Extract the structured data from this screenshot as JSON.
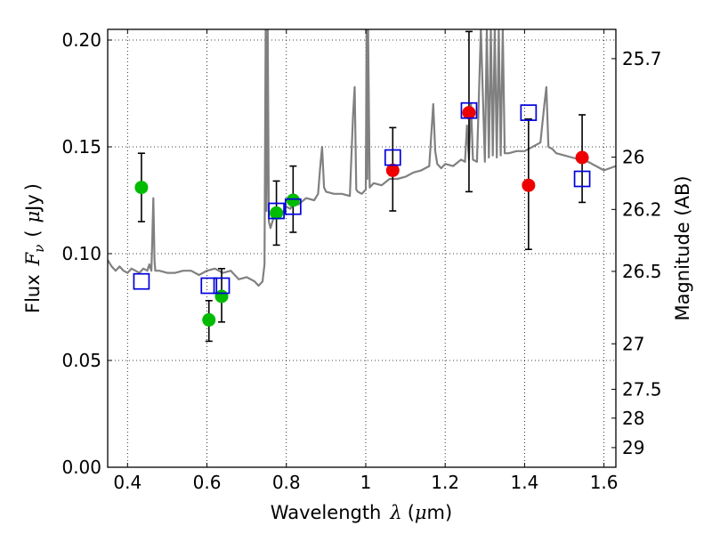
{
  "chart_data": {
    "type": "scatter",
    "title": "",
    "xlabel": {
      "prefix": "Wavelength",
      "symbol": "λ",
      "unit_open": "(",
      "unit_mu": "μ",
      "unit_rest": "m)"
    },
    "ylabel": {
      "prefix": "Flux",
      "symbol": "F",
      "subscript": "ν",
      "unit_open": "(",
      "unit_mu": "μ",
      "unit_rest": "Jy",
      "unit_close": ")"
    },
    "y2label": "Magnitude (AB)",
    "xlim": [
      0.35,
      1.63
    ],
    "ylim": [
      0.0,
      0.205
    ],
    "grid": true,
    "x_ticks": [
      0.4,
      0.6,
      0.8,
      1.0,
      1.2,
      1.4,
      1.6
    ],
    "x_tick_labels": [
      "0.4",
      "0.6",
      "0.8",
      "1",
      "1.2",
      "1.4",
      "1.6"
    ],
    "y_ticks": [
      0.0,
      0.05,
      0.1,
      0.15,
      0.2
    ],
    "y_tick_labels": [
      "0.00",
      "0.05",
      "0.10",
      "0.15",
      "0.20"
    ],
    "mag_ticks": [
      {
        "label": "25.7",
        "flux": 0.1913
      },
      {
        "label": "26",
        "flux": 0.1452
      },
      {
        "label": "26.2",
        "flux": 0.1207
      },
      {
        "label": "26.5",
        "flux": 0.0917
      },
      {
        "label": "27",
        "flux": 0.0578
      },
      {
        "label": "27.5",
        "flux": 0.0365
      },
      {
        "label": "28",
        "flux": 0.023
      },
      {
        "label": "29",
        "flux": 0.0092
      }
    ],
    "series": [
      {
        "name": "model SED",
        "kind": "line",
        "color": "#808080",
        "x": [
          0.35,
          0.36,
          0.37,
          0.38,
          0.39,
          0.4,
          0.41,
          0.42,
          0.43,
          0.44,
          0.45,
          0.455,
          0.46,
          0.462,
          0.465,
          0.468,
          0.47,
          0.48,
          0.5,
          0.52,
          0.54,
          0.56,
          0.58,
          0.6,
          0.62,
          0.64,
          0.66,
          0.68,
          0.7,
          0.72,
          0.73,
          0.74,
          0.745,
          0.748,
          0.75,
          0.753,
          0.756,
          0.76,
          0.765,
          0.77,
          0.78,
          0.79,
          0.8,
          0.81,
          0.82,
          0.83,
          0.85,
          0.87,
          0.88,
          0.885,
          0.89,
          0.895,
          0.9,
          0.92,
          0.94,
          0.96,
          0.968,
          0.972,
          0.976,
          0.98,
          0.99,
          1.0,
          1.002,
          1.004,
          1.006,
          1.01,
          1.02,
          1.04,
          1.06,
          1.08,
          1.1,
          1.12,
          1.14,
          1.16,
          1.17,
          1.175,
          1.18,
          1.19,
          1.2,
          1.22,
          1.24,
          1.25,
          1.255,
          1.26,
          1.265,
          1.27,
          1.28,
          1.29,
          1.3,
          1.305,
          1.31,
          1.315,
          1.32,
          1.325,
          1.33,
          1.335,
          1.34,
          1.345,
          1.35,
          1.36,
          1.38,
          1.4,
          1.42,
          1.44,
          1.45,
          1.455,
          1.46,
          1.47,
          1.48,
          1.5,
          1.52,
          1.54,
          1.56,
          1.58,
          1.6,
          1.63
        ],
        "y": [
          0.097,
          0.094,
          0.092,
          0.094,
          0.092,
          0.091,
          0.093,
          0.092,
          0.091,
          0.093,
          0.092,
          0.095,
          0.092,
          0.105,
          0.126,
          0.097,
          0.092,
          0.092,
          0.091,
          0.091,
          0.092,
          0.092,
          0.09,
          0.092,
          0.093,
          0.091,
          0.092,
          0.088,
          0.089,
          0.087,
          0.085,
          0.087,
          0.095,
          0.205,
          0.12,
          0.205,
          0.115,
          0.112,
          0.115,
          0.118,
          0.12,
          0.119,
          0.122,
          0.121,
          0.124,
          0.123,
          0.126,
          0.125,
          0.128,
          0.14,
          0.15,
          0.131,
          0.129,
          0.128,
          0.128,
          0.127,
          0.165,
          0.178,
          0.13,
          0.129,
          0.128,
          0.13,
          0.205,
          0.135,
          0.205,
          0.131,
          0.133,
          0.132,
          0.135,
          0.135,
          0.136,
          0.138,
          0.139,
          0.141,
          0.17,
          0.148,
          0.142,
          0.14,
          0.142,
          0.141,
          0.144,
          0.143,
          0.16,
          0.144,
          0.17,
          0.144,
          0.143,
          0.205,
          0.143,
          0.205,
          0.145,
          0.205,
          0.146,
          0.205,
          0.145,
          0.205,
          0.146,
          0.205,
          0.147,
          0.147,
          0.148,
          0.148,
          0.15,
          0.152,
          0.17,
          0.178,
          0.15,
          0.149,
          0.147,
          0.146,
          0.145,
          0.144,
          0.143,
          0.141,
          0.139,
          0.141
        ]
      },
      {
        "name": "green points",
        "kind": "points_err",
        "color": "#00bb00",
        "points": [
          {
            "x": 0.435,
            "y": 0.131,
            "lo": 0.115,
            "hi": 0.147
          },
          {
            "x": 0.605,
            "y": 0.069,
            "lo": 0.059,
            "hi": 0.078
          },
          {
            "x": 0.637,
            "y": 0.08,
            "lo": 0.068,
            "hi": 0.093
          },
          {
            "x": 0.775,
            "y": 0.119,
            "lo": 0.104,
            "hi": 0.134
          },
          {
            "x": 0.817,
            "y": 0.125,
            "lo": 0.11,
            "hi": 0.141
          }
        ]
      },
      {
        "name": "red points",
        "kind": "points_err",
        "color": "#ee0000",
        "points": [
          {
            "x": 1.068,
            "y": 0.139,
            "lo": 0.12,
            "hi": 0.159
          },
          {
            "x": 1.26,
            "y": 0.166,
            "lo": 0.129,
            "hi": 0.204
          },
          {
            "x": 1.41,
            "y": 0.132,
            "lo": 0.102,
            "hi": 0.163
          },
          {
            "x": 1.545,
            "y": 0.145,
            "lo": 0.124,
            "hi": 0.165
          }
        ]
      },
      {
        "name": "blue squares",
        "kind": "squares",
        "color": "#0000dd",
        "points": [
          {
            "x": 0.435,
            "y": 0.087
          },
          {
            "x": 0.605,
            "y": 0.085
          },
          {
            "x": 0.637,
            "y": 0.085
          },
          {
            "x": 0.775,
            "y": 0.12
          },
          {
            "x": 0.817,
            "y": 0.122
          },
          {
            "x": 1.068,
            "y": 0.145
          },
          {
            "x": 1.26,
            "y": 0.167
          },
          {
            "x": 1.41,
            "y": 0.166
          },
          {
            "x": 1.545,
            "y": 0.135
          }
        ]
      }
    ]
  }
}
